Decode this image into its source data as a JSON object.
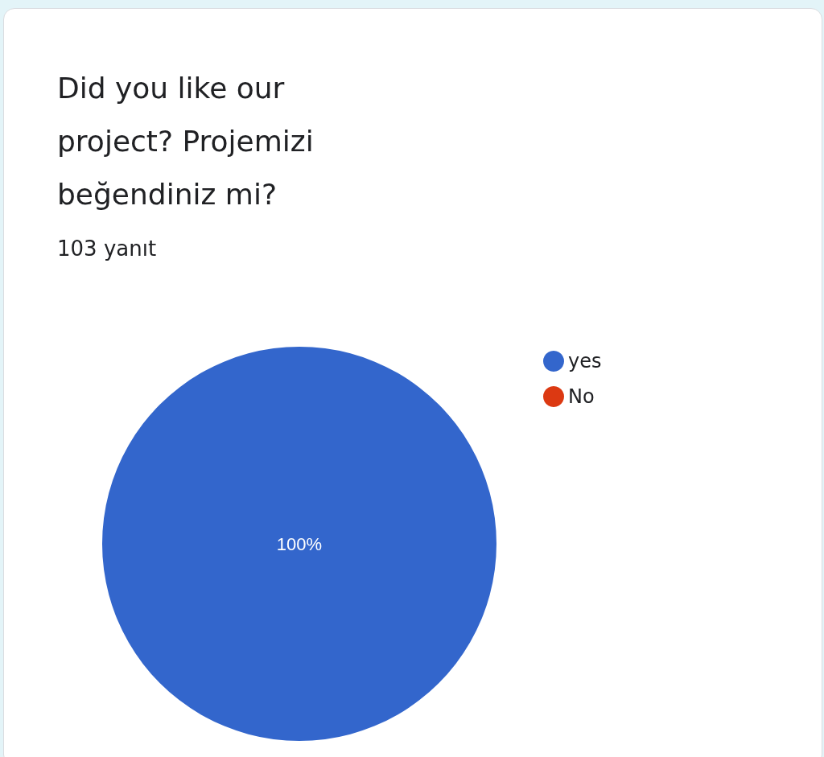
{
  "chart_data": {
    "type": "pie",
    "title": "Did you like our project? Projemizi beğendiniz mi?",
    "subtitle": "103 yanıt",
    "categories": [
      "yes",
      "No"
    ],
    "values": [
      100,
      0
    ],
    "colors": [
      "#3366cc",
      "#dc3912"
    ],
    "value_labels": [
      "100%",
      null
    ],
    "legend": "right"
  }
}
